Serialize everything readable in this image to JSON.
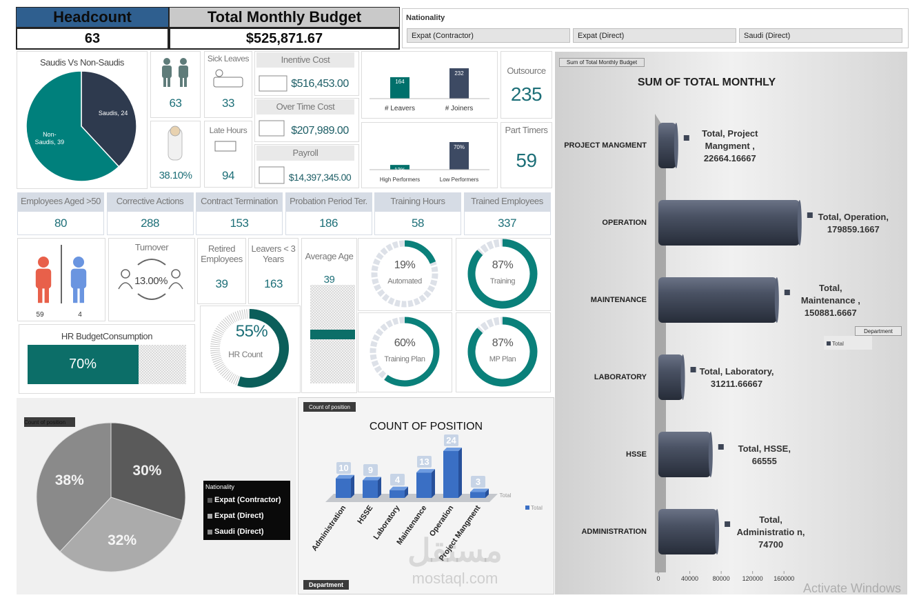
{
  "header": {
    "headcount_label": "Headcount",
    "headcount": "63",
    "budget_label": "Total Monthly Budget",
    "budget": "$525,871.67"
  },
  "slicer": {
    "title": "Nationality",
    "items": [
      "Expat (Contractor)",
      "Expat (Direct)",
      "Saudi (Direct)"
    ]
  },
  "kpis": {
    "headcount": "63",
    "sick_leaves": {
      "label": "Sick Leaves",
      "value": "33"
    },
    "saudization": "38.10%",
    "late_hours": {
      "label": "Late Hours",
      "value": "94"
    },
    "incentive": {
      "label": "Inentive Cost",
      "value": "$516,453.00"
    },
    "overtime": {
      "label": "Over Time Cost",
      "value": "$207,989.00"
    },
    "payroll": {
      "label": "Payroll",
      "value": "$14,397,345.00"
    },
    "outsource": {
      "label": "Outsource",
      "value": "235"
    },
    "part_timers": {
      "label": "Part Timers",
      "value": "59"
    },
    "row": [
      {
        "label": "Employees Aged >50",
        "value": "80"
      },
      {
        "label": "Corrective Actions",
        "value": "288"
      },
      {
        "label": "Contract Termination",
        "value": "153"
      },
      {
        "label": "Probation Period Ter.",
        "value": "186"
      },
      {
        "label": "Training Hours",
        "value": "58"
      },
      {
        "label": "Trained Employees",
        "value": "337"
      }
    ],
    "gender": {
      "female": "59",
      "male": "4"
    },
    "turnover": {
      "label": "Turnover",
      "value": "13.00%"
    },
    "retired": {
      "label": "Retired Employees",
      "value": "39"
    },
    "leavers_3y": {
      "label": "Leavers < 3 Years",
      "value": "163"
    },
    "average_age": {
      "label": "Average Age",
      "value": "39"
    },
    "hr_budget": {
      "label": "HR BudgetConsumption",
      "value": 70,
      "value_label": "70%"
    },
    "hr_count": {
      "label": "HR Count",
      "value": 55,
      "value_label": "55%"
    },
    "gauges": [
      {
        "label": "Automated",
        "value": 19,
        "value_label": "19%"
      },
      {
        "label": "Training",
        "value": 87,
        "value_label": "87%"
      },
      {
        "label": "Training Plan",
        "value": 60,
        "value_label": "60%"
      },
      {
        "label": "MP Plan",
        "value": 87,
        "value_label": "87%"
      }
    ]
  },
  "chart_data": [
    {
      "type": "pie",
      "title": "Saudis Vs Non-Saudis",
      "categories": [
        "Saudis",
        "Non-Saudis"
      ],
      "values": [
        24,
        39
      ],
      "value_labels": [
        "Saudis, 24",
        "Non-Saudis, 39"
      ],
      "colors": [
        "#2e3a4e",
        "#00807c"
      ]
    },
    {
      "type": "bar",
      "categories": [
        "# Leavers",
        "# Joiners"
      ],
      "values": [
        164,
        232
      ],
      "colors": [
        "#00706b",
        "#3d4a63"
      ]
    },
    {
      "type": "bar",
      "categories": [
        "High Performers",
        "Low Performers"
      ],
      "values": [
        12,
        70
      ],
      "value_labels": [
        "12%",
        "70%"
      ],
      "colors": [
        "#00706b",
        "#3d4a63"
      ]
    },
    {
      "type": "hbar",
      "tag": "Sum of Total Monthly Budget",
      "title": "SUM OF TOTAL MONTHLY",
      "legend_title": "Department",
      "categories": [
        "PROJECT MANGMENT",
        "OPERATION",
        "MAINTENANCE",
        "LABORATORY",
        "HSSE",
        "ADMINISTRATION"
      ],
      "series": [
        {
          "name": "Total",
          "color": "#3d4555",
          "values": [
            22664.16667,
            179859.1667,
            150881.6667,
            31211.66667,
            66555,
            74700
          ],
          "value_labels": [
            "Total, Project Mangment , 22664.16667",
            "Total, Operation, 179859.1667",
            "Total, Maintenance , 150881.6667",
            "Total, Laboratory, 31211.66667",
            "Total, HSSE, 66555",
            "Total, Administratio n, 74700"
          ]
        }
      ],
      "xlim": [
        0,
        180000
      ],
      "xticks": [
        0,
        40000,
        80000,
        120000,
        160000
      ]
    },
    {
      "type": "column3d",
      "tag": "Count of position",
      "title": "COUNT OF POSITION",
      "axis_tag": "Department",
      "categories": [
        "Administration",
        "HSSE",
        "Laboratory",
        "Maintenance",
        "Operation",
        "Project Mangment"
      ],
      "series": [
        {
          "name": "Total",
          "color": "#3a6fc4",
          "values": [
            10,
            9,
            4,
            13,
            24,
            3
          ]
        }
      ]
    },
    {
      "type": "pie",
      "tag": "Count of position",
      "legend_title": "Nationality",
      "categories": [
        "Expat (Contractor)",
        "Expat (Direct)",
        "Saudi (Direct)"
      ],
      "values": [
        30,
        32,
        38
      ],
      "value_labels": [
        "30%",
        "32%",
        "38%"
      ],
      "colors": [
        "#5a5a5a",
        "#ababab",
        "#8a8a8a"
      ]
    }
  ],
  "watermark": [
    "مستقل",
    "mostaql.com"
  ],
  "os_notice": "Activate Windows"
}
